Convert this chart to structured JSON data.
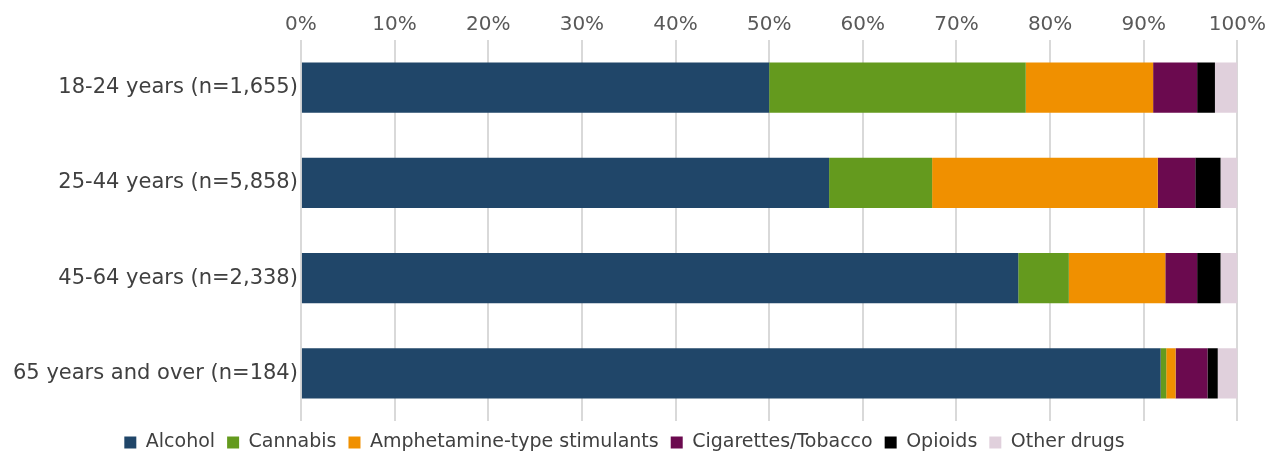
{
  "chart_data": {
    "type": "bar",
    "orientation": "horizontal",
    "stacked": true,
    "categories": [
      "18-24 years (n=1,655)",
      "25-44 years (n=5,858)",
      "45-64 years (n=2,338)",
      "65 years and over (n=184)"
    ],
    "series": [
      {
        "name": "Alcohol",
        "color": "#204669",
        "values": [
          50.0,
          56.4,
          76.6,
          91.8
        ]
      },
      {
        "name": "Cannabis",
        "color": "#649a1e",
        "values": [
          27.4,
          11.0,
          5.4,
          0.6
        ]
      },
      {
        "name": "Amphetamine-type stimulants",
        "color": "#f09000",
        "values": [
          13.6,
          24.1,
          10.3,
          1.0
        ]
      },
      {
        "name": "Cigarettes/Tobacco",
        "color": "#6b0a4f",
        "values": [
          4.7,
          4.0,
          3.4,
          3.4
        ]
      },
      {
        "name": "Opioids",
        "color": "#000000",
        "values": [
          1.9,
          2.7,
          2.5,
          1.1
        ]
      },
      {
        "name": "Other drugs",
        "color": "#e0d0dc",
        "values": [
          2.4,
          1.8,
          1.8,
          2.1
        ]
      }
    ],
    "xlim": [
      0,
      100
    ],
    "xticks": [
      {
        "value": 0,
        "label": "0%"
      },
      {
        "value": 10,
        "label": "10%"
      },
      {
        "value": 20,
        "label": "20%"
      },
      {
        "value": 30,
        "label": "30%"
      },
      {
        "value": 40,
        "label": "40%"
      },
      {
        "value": 50,
        "label": "50%"
      },
      {
        "value": 60,
        "label": "60%"
      },
      {
        "value": 70,
        "label": "70%"
      },
      {
        "value": 80,
        "label": "80%"
      },
      {
        "value": 90,
        "label": "90%"
      },
      {
        "value": 100,
        "label": "100%"
      }
    ],
    "grid": "x",
    "legend": "bottom"
  }
}
